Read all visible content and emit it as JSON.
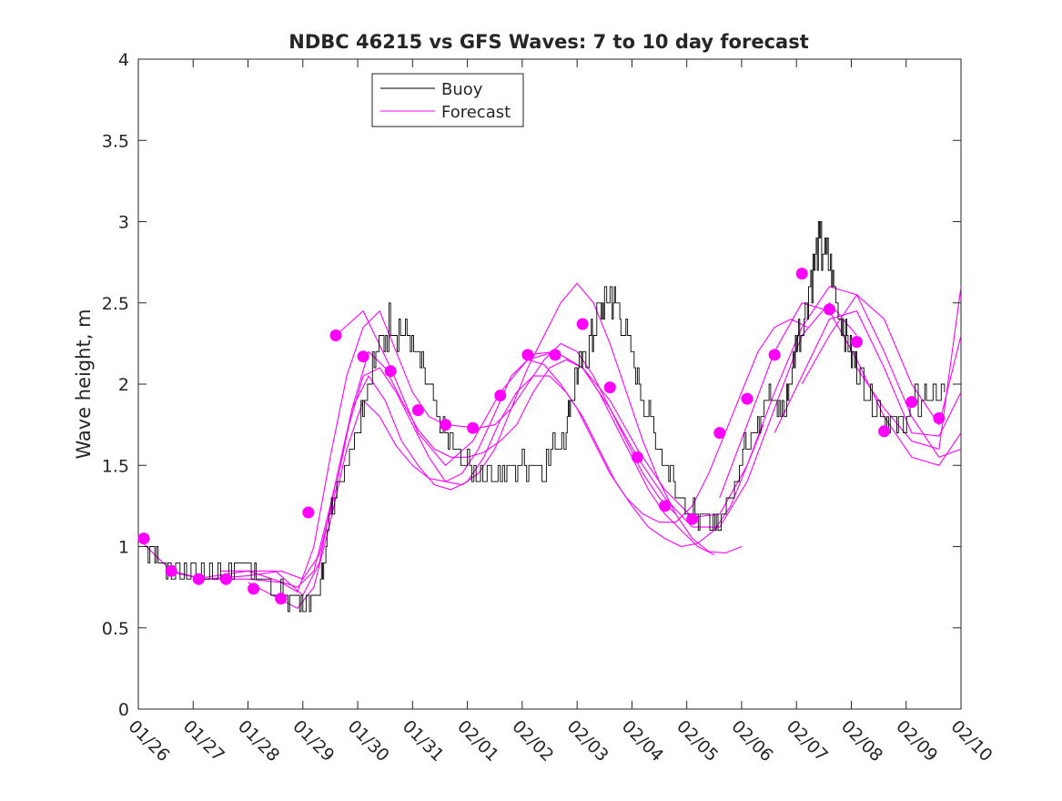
{
  "chart_data": {
    "type": "line",
    "title": "NDBC 46215 vs GFS Waves: 7 to 10 day forecast",
    "xlabel": "",
    "ylabel": "Wave height, m",
    "xlim": [
      0,
      15
    ],
    "ylim": [
      0,
      4
    ],
    "x_tick_labels": [
      "01/26",
      "01/27",
      "01/28",
      "01/29",
      "01/30",
      "01/31",
      "02/01",
      "02/02",
      "02/03",
      "02/04",
      "02/05",
      "02/06",
      "02/07",
      "02/08",
      "02/09",
      "02/10"
    ],
    "y_ticks": [
      0,
      0.5,
      1,
      1.5,
      2,
      2.5,
      3,
      3.5,
      4
    ],
    "y_tick_labels": [
      "0",
      "0.5",
      "1",
      "1.5",
      "2",
      "2.5",
      "3",
      "3.5",
      "4"
    ],
    "legend": {
      "position": "top-left",
      "entries": [
        "Buoy",
        "Forecast"
      ]
    },
    "colors": {
      "buoy": "#000000",
      "forecast": "#ff00ff"
    },
    "series": [
      {
        "name": "Buoy",
        "x": [
          0,
          0.3,
          0.6,
          1.0,
          1.5,
          2.0,
          2.3,
          2.5,
          2.7,
          3.0,
          3.3,
          3.5,
          3.7,
          4.0,
          4.3,
          4.6,
          4.9,
          5.2,
          5.5,
          5.8,
          6.2,
          6.6,
          7.0,
          7.4,
          7.8,
          8.0,
          8.2,
          8.4,
          8.6,
          8.8,
          9.1,
          9.4,
          9.7,
          10.0,
          10.3,
          10.6,
          10.9,
          11.2,
          11.5,
          11.8,
          12.0,
          12.2,
          12.4,
          12.6,
          12.8,
          13.0,
          13.2,
          13.5,
          13.8,
          14.1,
          14.4,
          14.7
        ],
        "values": [
          1.05,
          0.95,
          0.85,
          0.85,
          0.85,
          0.9,
          0.8,
          0.72,
          0.7,
          0.65,
          0.72,
          1.2,
          1.45,
          1.75,
          2.15,
          2.4,
          2.3,
          2.05,
          1.75,
          1.55,
          1.45,
          1.45,
          1.5,
          1.5,
          1.75,
          2.1,
          2.2,
          2.45,
          2.55,
          2.4,
          2.05,
          1.7,
          1.45,
          1.25,
          1.15,
          1.15,
          1.45,
          1.75,
          1.9,
          1.85,
          2.25,
          2.55,
          2.85,
          2.75,
          2.4,
          2.2,
          2.05,
          1.85,
          1.75,
          1.85,
          1.95,
          1.95
        ]
      },
      {
        "name": "Forecast",
        "runs": [
          {
            "x": [
              0,
              0.6,
              1.2,
              2.0,
              2.6,
              2.9,
              3.2,
              3.5,
              3.8,
              4.1,
              4.4,
              4.7,
              5.0,
              5.3,
              5.6,
              5.9,
              6.2,
              6.5,
              6.8,
              7.1,
              7.4,
              7.7,
              8.0,
              8.3,
              8.6,
              8.9,
              9.2,
              9.5,
              9.8
            ],
            "values": [
              1.05,
              0.85,
              0.8,
              0.8,
              0.78,
              0.72,
              1.0,
              1.55,
              2.05,
              2.35,
              2.45,
              2.2,
              1.95,
              1.8,
              1.75,
              1.74,
              1.73,
              1.75,
              1.85,
              2.0,
              2.15,
              2.25,
              2.2,
              2.05,
              1.85,
              1.65,
              1.45,
              1.3,
              1.2
            ]
          },
          {
            "x": [
              0.5,
              1.2,
              2.0,
              2.6,
              3.0,
              3.3,
              3.6,
              3.9,
              4.2,
              4.5,
              4.8,
              5.1,
              5.4,
              5.7,
              6.0,
              6.3,
              6.6,
              6.9,
              7.2,
              7.5,
              7.8,
              8.1,
              8.4,
              8.7,
              9.0,
              9.3,
              9.6,
              9.9,
              10.2,
              10.5
            ],
            "values": [
              0.85,
              0.8,
              0.82,
              0.85,
              0.8,
              0.95,
              1.35,
              1.85,
              2.2,
              2.1,
              1.9,
              1.72,
              1.6,
              1.55,
              1.55,
              1.58,
              1.65,
              1.75,
              1.95,
              2.1,
              2.15,
              2.1,
              1.95,
              1.75,
              1.55,
              1.35,
              1.2,
              1.1,
              1.0,
              0.95
            ]
          },
          {
            "x": [
              1.0,
              2.0,
              2.9,
              3.2,
              3.5,
              3.8,
              4.1,
              4.4,
              4.7,
              5.0,
              5.3,
              5.6,
              5.9,
              6.2,
              6.5,
              6.8,
              7.1,
              7.4,
              7.7,
              8.0,
              8.3,
              8.6,
              8.9,
              9.2,
              9.5,
              9.8,
              10.1,
              10.4,
              10.7,
              11.0
            ],
            "values": [
              0.8,
              0.85,
              0.75,
              0.85,
              1.25,
              1.7,
              2.05,
              2.1,
              1.95,
              1.75,
              1.55,
              1.4,
              1.38,
              1.45,
              1.6,
              1.85,
              2.1,
              2.3,
              2.5,
              2.62,
              2.5,
              2.25,
              1.95,
              1.65,
              1.4,
              1.2,
              1.05,
              0.97,
              0.96,
              1.0
            ]
          },
          {
            "x": [
              1.5,
              2.5,
              3.0,
              3.3,
              3.6,
              3.9,
              4.2,
              4.5,
              4.8,
              5.1,
              5.4,
              5.7,
              6.0,
              6.3,
              6.6,
              6.9,
              7.2,
              7.5,
              7.8,
              8.1,
              8.4,
              8.7,
              9.0,
              9.3,
              9.6,
              9.9,
              10.2,
              10.5,
              10.8,
              11.1,
              11.4
            ],
            "values": [
              0.85,
              0.85,
              0.7,
              0.9,
              1.4,
              1.85,
              2.05,
              1.9,
              1.65,
              1.5,
              1.38,
              1.35,
              1.4,
              1.55,
              1.78,
              1.95,
              2.05,
              2.05,
              1.95,
              1.8,
              1.6,
              1.4,
              1.25,
              1.12,
              1.05,
              1.0,
              1.02,
              1.1,
              1.25,
              1.5,
              1.75
            ]
          },
          {
            "x": [
              2.0,
              2.9,
              3.2,
              3.5,
              3.8,
              4.1,
              4.4,
              4.7,
              5.0,
              5.3,
              5.6,
              5.9,
              6.2,
              6.5,
              6.8,
              7.1,
              7.4,
              7.7,
              8.0,
              8.3,
              8.6,
              8.9,
              9.2,
              9.5,
              9.8,
              10.1,
              10.4,
              10.7,
              11.0,
              11.3,
              11.6,
              11.9,
              12.2
            ],
            "values": [
              0.78,
              0.62,
              0.75,
              1.15,
              1.6,
              1.9,
              1.8,
              1.62,
              1.5,
              1.42,
              1.4,
              1.45,
              1.6,
              1.82,
              2.05,
              2.15,
              2.12,
              2.0,
              1.85,
              1.65,
              1.45,
              1.3,
              1.2,
              1.15,
              1.15,
              1.25,
              1.45,
              1.7,
              1.95,
              2.2,
              2.35,
              2.4,
              2.35
            ]
          },
          {
            "x": [
              3.6,
              4.1,
              4.6,
              5.1,
              5.6,
              6.1,
              6.6,
              7.1,
              7.6,
              8.1,
              8.6,
              9.1,
              9.6,
              10.1,
              10.6,
              11.1,
              11.6,
              12.1,
              12.6,
              13.1
            ],
            "values": [
              2.3,
              2.45,
              2.1,
              1.7,
              1.5,
              1.65,
              1.95,
              2.15,
              2.2,
              2.1,
              1.85,
              1.55,
              1.3,
              1.12,
              1.12,
              1.4,
              1.85,
              2.3,
              2.5,
              2.3
            ]
          },
          {
            "x": [
              7.1,
              7.6,
              8.1,
              8.6,
              9.1,
              9.6,
              10.1,
              10.6,
              11.1,
              11.6,
              12.1,
              12.6,
              13.1,
              13.6,
              14.1,
              14.6,
              15.0
            ],
            "values": [
              2.18,
              2.2,
              2.1,
              1.9,
              1.6,
              1.35,
              1.18,
              1.2,
              1.5,
              1.95,
              2.35,
              2.6,
              2.55,
              2.2,
              1.8,
              1.55,
              1.6
            ]
          },
          {
            "x": [
              10.6,
              11.1,
              11.6,
              12.1,
              12.6,
              13.1,
              13.6,
              14.1,
              14.6,
              15.0
            ],
            "values": [
              1.3,
              1.75,
              2.2,
              2.5,
              2.45,
              2.15,
              1.8,
              1.55,
              1.5,
              1.7
            ]
          },
          {
            "x": [
              11.6,
              12.1,
              12.6,
              13.1,
              13.6,
              14.1,
              14.6,
              15.0
            ],
            "values": [
              1.7,
              2.05,
              2.4,
              2.45,
              2.1,
              1.7,
              1.68,
              1.95
            ]
          },
          {
            "x": [
              12.1,
              12.6,
              13.1,
              13.6,
              14.1,
              14.6,
              15.0
            ],
            "values": [
              2.0,
              2.3,
              2.55,
              2.4,
              2.0,
              1.75,
              2.3
            ]
          },
          {
            "x": [
              13.1,
              13.6,
              14.1,
              14.6,
              15.0
            ],
            "values": [
              2.1,
              1.85,
              1.65,
              1.6,
              2.6
            ]
          }
        ]
      },
      {
        "name": "Forecast points",
        "x": [
          0.1,
          0.6,
          1.1,
          1.6,
          2.1,
          2.6,
          3.1,
          3.6,
          4.1,
          4.6,
          5.1,
          5.6,
          6.1,
          6.6,
          7.1,
          7.6,
          8.1,
          8.6,
          9.1,
          9.6,
          10.1,
          10.6,
          11.1,
          11.6,
          12.1,
          12.6,
          13.1,
          13.6,
          14.1,
          14.6
        ],
        "values": [
          1.05,
          0.85,
          0.8,
          0.8,
          0.74,
          0.68,
          1.21,
          2.3,
          2.17,
          2.08,
          1.84,
          1.75,
          1.73,
          1.93,
          2.18,
          2.18,
          2.37,
          1.98,
          1.55,
          1.25,
          1.17,
          1.7,
          1.91,
          2.18,
          2.68,
          2.46,
          2.26,
          1.71,
          1.89,
          1.79
        ]
      }
    ]
  }
}
